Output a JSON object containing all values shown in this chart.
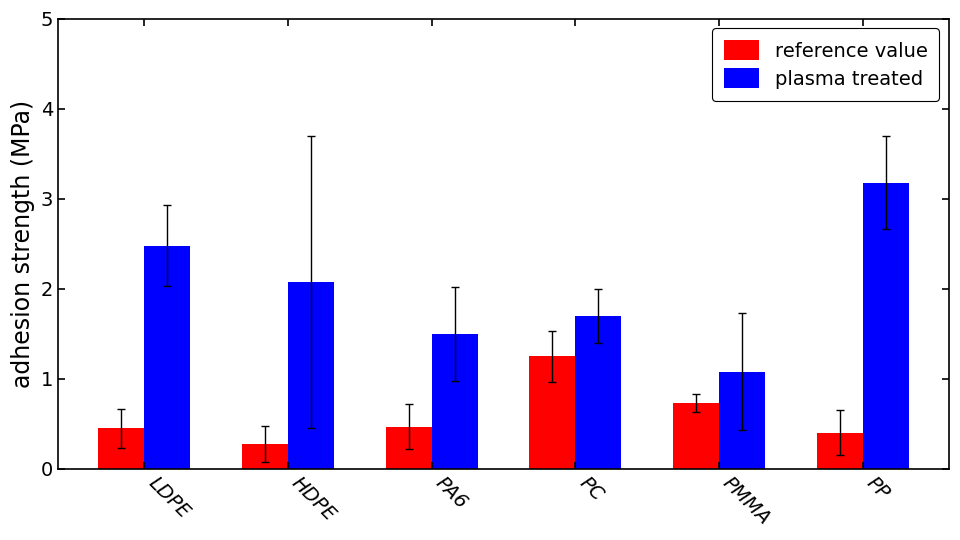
{
  "categories": [
    "LDPE",
    "HDPE",
    "PA6",
    "PC",
    "PMMA",
    "PP"
  ],
  "ref_values": [
    0.45,
    0.28,
    0.47,
    1.25,
    0.73,
    0.4
  ],
  "ref_errors": [
    0.22,
    0.2,
    0.25,
    0.28,
    0.1,
    0.25
  ],
  "plasma_values": [
    2.48,
    2.08,
    1.5,
    1.7,
    1.08,
    3.18
  ],
  "plasma_errors": [
    0.45,
    1.62,
    0.52,
    0.3,
    0.65,
    0.52
  ],
  "ref_color": "#FF0000",
  "plasma_color": "#0000FF",
  "ref_label": "reference value",
  "plasma_label": "plasma treated",
  "ylabel": "adhesion strength (MPa)",
  "ylim": [
    0,
    5
  ],
  "yticks": [
    0,
    1,
    2,
    3,
    4,
    5
  ],
  "bar_width": 0.32,
  "figsize": [
    9.6,
    5.4
  ],
  "dpi": 100,
  "background_color": "#FFFFFF",
  "legend_fontsize": 14,
  "axis_label_fontsize": 17,
  "tick_fontsize": 14,
  "xlabel_rotation": -45
}
